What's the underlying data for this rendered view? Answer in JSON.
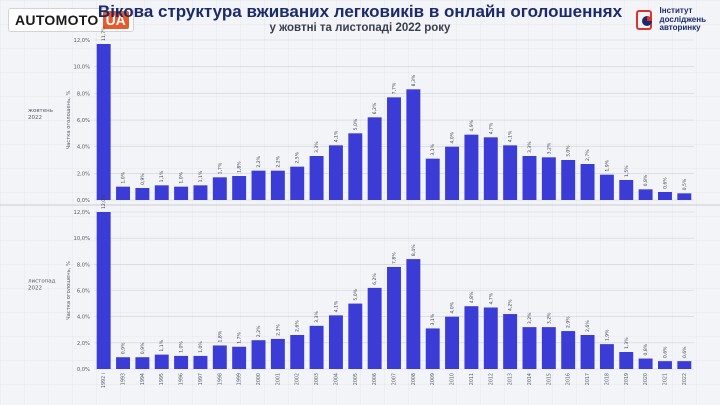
{
  "header": {
    "logo_main": "AUTOMOTO",
    "logo_accent": "UA",
    "title": "Вікова структура вживаних легковиків в онлайн оголошеннях",
    "subtitle": "у жовтні та листопаді 2022 року",
    "institute_line1": "Інститут",
    "institute_line2": "досліджень",
    "institute_line3": "авторинку"
  },
  "colors": {
    "bar": "#3b3bd6",
    "brand_orange": "#e85a2c",
    "title": "#1b2a6b",
    "institute_red": "#e0322b",
    "institute_blue": "#1b2a6b"
  },
  "chart_data": [
    {
      "type": "bar",
      "panel_label": [
        "жовтень",
        "2022"
      ],
      "ylabel": "Частка оголошень, %",
      "ylim": [
        0,
        12
      ],
      "yticks": [
        "0,0%",
        "2,0%",
        "4,0%",
        "6,0%",
        "8,0%",
        "10,0%",
        "12,0%"
      ],
      "grid": true,
      "categories": [
        "1992 і",
        "1993",
        "1994",
        "1995",
        "1996",
        "1997",
        "1998",
        "1999",
        "2000",
        "2001",
        "2002",
        "2003",
        "2004",
        "2005",
        "2006",
        "2007",
        "2008",
        "2009",
        "2010",
        "2011",
        "2012",
        "2013",
        "2014",
        "2015",
        "2016",
        "2017",
        "2018",
        "2019",
        "2020",
        "2021",
        "2022"
      ],
      "values": [
        11.7,
        1.0,
        0.9,
        1.1,
        1.0,
        1.1,
        1.7,
        1.8,
        2.2,
        2.2,
        2.5,
        3.3,
        4.1,
        5.0,
        6.2,
        7.7,
        8.3,
        3.1,
        4.0,
        4.9,
        4.7,
        4.1,
        3.3,
        3.2,
        3.0,
        2.7,
        1.9,
        1.5,
        0.8,
        0.6,
        0.5
      ],
      "labels": [
        "11,7%",
        "1,0%",
        "0,9%",
        "1,1%",
        "1,0%",
        "1,1%",
        "1,7%",
        "1,8%",
        "2,2%",
        "2,2%",
        "2,5%",
        "3,3%",
        "4,1%",
        "5,0%",
        "6,2%",
        "7,7%",
        "8,3%",
        "3,1%",
        "4,0%",
        "4,9%",
        "4,7%",
        "4,1%",
        "3,3%",
        "3,2%",
        "3,0%",
        "2,7%",
        "1,9%",
        "1,5%",
        "0,8%",
        "0,6%",
        "0,5%"
      ]
    },
    {
      "type": "bar",
      "panel_label": [
        "листопад",
        "2022"
      ],
      "ylabel": "Частка оголошень, %",
      "ylim": [
        0,
        12
      ],
      "yticks": [
        "0,0%",
        "2,0%",
        "4,0%",
        "6,0%",
        "8,0%",
        "10,0%",
        "12,0%"
      ],
      "grid": true,
      "categories": [
        "1992 і",
        "1993",
        "1994",
        "1995",
        "1996",
        "1997",
        "1998",
        "1999",
        "2000",
        "2001",
        "2002",
        "2003",
        "2004",
        "2005",
        "2006",
        "2007",
        "2008",
        "2009",
        "2010",
        "2011",
        "2012",
        "2013",
        "2014",
        "2015",
        "2016",
        "2017",
        "2018",
        "2019",
        "2020",
        "2021",
        "2022"
      ],
      "values": [
        12.0,
        0.9,
        0.9,
        1.1,
        1.0,
        1.0,
        1.8,
        1.7,
        2.2,
        2.3,
        2.6,
        3.3,
        4.1,
        5.0,
        6.2,
        7.8,
        8.4,
        3.1,
        4.0,
        4.8,
        4.7,
        4.2,
        3.2,
        3.2,
        2.9,
        2.6,
        1.9,
        1.3,
        0.8,
        0.6,
        0.6
      ],
      "labels": [
        "12,0%",
        "0,9%",
        "0,9%",
        "1,1%",
        "1,0%",
        "1,0%",
        "1,8%",
        "1,7%",
        "2,2%",
        "2,3%",
        "2,6%",
        "3,3%",
        "4,1%",
        "5,0%",
        "6,2%",
        "7,8%",
        "8,4%",
        "3,1%",
        "4,0%",
        "4,8%",
        "4,7%",
        "4,2%",
        "3,2%",
        "3,2%",
        "2,9%",
        "2,6%",
        "1,9%",
        "1,3%",
        "0,8%",
        "0,6%",
        "0,6%"
      ]
    }
  ]
}
